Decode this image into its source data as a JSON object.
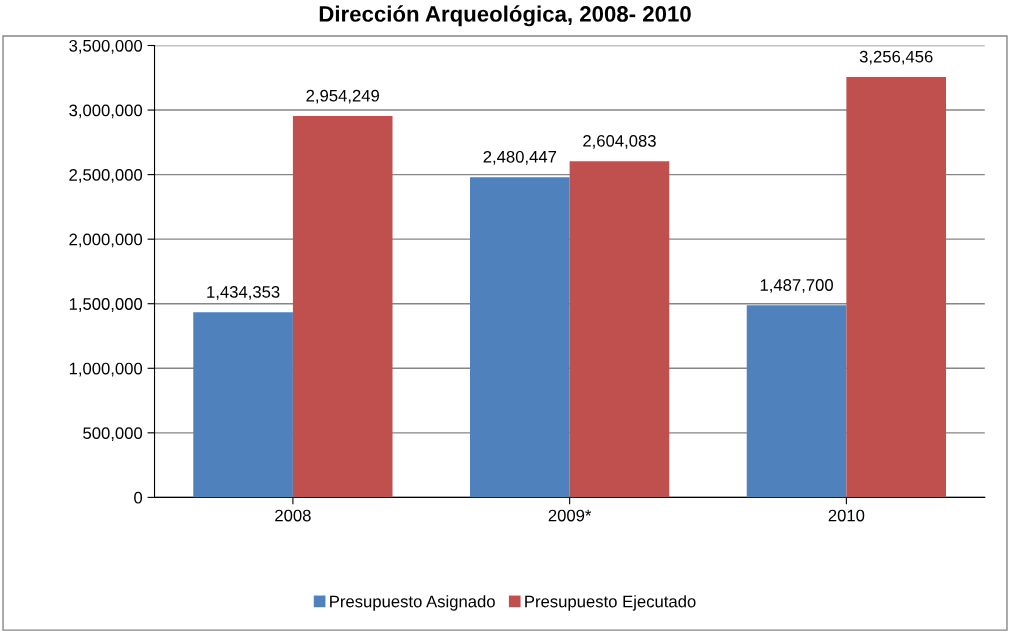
{
  "chart_data": {
    "type": "bar",
    "title": "Dirección Arqueológica, 2008- 2010",
    "categories": [
      "2008",
      "2009*",
      "2010"
    ],
    "series": [
      {
        "name": "Presupuesto Asignado",
        "color": "#4f81bd",
        "values": [
          1434353,
          2480447,
          1487700
        ],
        "value_labels": [
          "1,434,353",
          "2,480,447",
          "1,487,700"
        ]
      },
      {
        "name": "Presupuesto Ejecutado",
        "color": "#c0504d",
        "values": [
          2954249,
          2604083,
          3256456
        ],
        "value_labels": [
          "2,954,249",
          "2,604,083",
          "3,256,456"
        ]
      }
    ],
    "ylim": [
      0,
      3500000
    ],
    "yticks": [
      {
        "value": 0,
        "label": "0"
      },
      {
        "value": 500000,
        "label": "500,000"
      },
      {
        "value": 1000000,
        "label": "1,000,000"
      },
      {
        "value": 1500000,
        "label": "1,500,000"
      },
      {
        "value": 2000000,
        "label": "2,000,000"
      },
      {
        "value": 2500000,
        "label": "2,500,000"
      },
      {
        "value": 3000000,
        "label": "3,000,000"
      },
      {
        "value": 3500000,
        "label": "3,500,000"
      }
    ],
    "grid": "y",
    "legend": "bottom"
  }
}
